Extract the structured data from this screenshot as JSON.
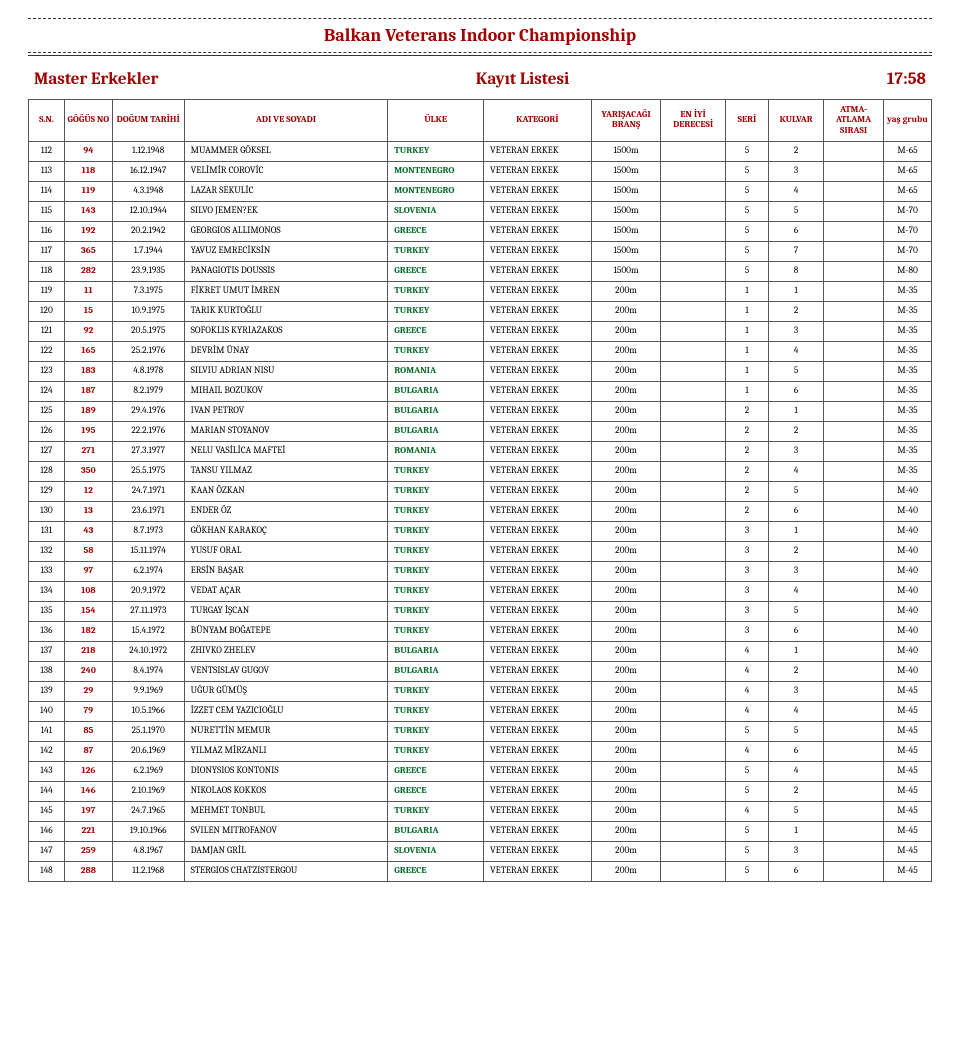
{
  "page": {
    "title": "Balkan Veterans Indoor Championship",
    "subtitle_left": "Master Erkekler",
    "subtitle_center": "Kayıt Listesi",
    "subtitle_right": "17:58"
  },
  "headers": {
    "sn": "S.N.",
    "gogus": "GÖĞÜS NO",
    "dogum": "DOĞUM TARİHİ",
    "ad": "ADI VE SOYADI",
    "ulke": "ÜLKE",
    "kategori": "KATEGORİ",
    "brans": "YARIŞACAĞI BRANŞ",
    "eniyi": "EN İYİ DERECESİ",
    "seri": "SERİ",
    "kulvar": "KULVAR",
    "atma": "ATMA-ATLAMA SIRASI",
    "yas": "yaş grubu"
  },
  "rows": [
    {
      "sn": "112",
      "gogus": "94",
      "dogum": "1.12.1948",
      "ad": "MUAMMER GÖKSEL",
      "ulke": "TURKEY",
      "kat": "VETERAN ERKEK",
      "brans": "1500m",
      "eniyi": "",
      "seri": "5",
      "kulv": "2",
      "atma": "",
      "yas": "M-65"
    },
    {
      "sn": "113",
      "gogus": "118",
      "dogum": "16.12.1947",
      "ad": "VELİMİR COROVİC",
      "ulke": "MONTENEGRO",
      "kat": "VETERAN ERKEK",
      "brans": "1500m",
      "eniyi": "",
      "seri": "5",
      "kulv": "3",
      "atma": "",
      "yas": "M-65"
    },
    {
      "sn": "114",
      "gogus": "119",
      "dogum": "4.3.1948",
      "ad": "LAZAR SEKULİC",
      "ulke": "MONTENEGRO",
      "kat": "VETERAN ERKEK",
      "brans": "1500m",
      "eniyi": "",
      "seri": "5",
      "kulv": "4",
      "atma": "",
      "yas": "M-65"
    },
    {
      "sn": "115",
      "gogus": "143",
      "dogum": "12.10.1944",
      "ad": "SILVO JEMEN?EK",
      "ulke": "SLOVENIA",
      "kat": "VETERAN ERKEK",
      "brans": "1500m",
      "eniyi": "",
      "seri": "5",
      "kulv": "5",
      "atma": "",
      "yas": "M-70"
    },
    {
      "sn": "116",
      "gogus": "192",
      "dogum": "20.2.1942",
      "ad": "GEORGIOS ALLIMONOS",
      "ulke": "GREECE",
      "kat": "VETERAN ERKEK",
      "brans": "1500m",
      "eniyi": "",
      "seri": "5",
      "kulv": "6",
      "atma": "",
      "yas": "M-70"
    },
    {
      "sn": "117",
      "gogus": "365",
      "dogum": "1.7.1944",
      "ad": "YAVUZ EMRECİKSİN",
      "ulke": "TURKEY",
      "kat": "VETERAN ERKEK",
      "brans": "1500m",
      "eniyi": "",
      "seri": "5",
      "kulv": "7",
      "atma": "",
      "yas": "M-70"
    },
    {
      "sn": "118",
      "gogus": "282",
      "dogum": "23.9.1935",
      "ad": "PANAGIOTIS DOUSSIS",
      "ulke": "GREECE",
      "kat": "VETERAN ERKEK",
      "brans": "1500m",
      "eniyi": "",
      "seri": "5",
      "kulv": "8",
      "atma": "",
      "yas": "M-80"
    },
    {
      "sn": "119",
      "gogus": "11",
      "dogum": "7.3.1975",
      "ad": "FİKRET UMUT İMREN",
      "ulke": "TURKEY",
      "kat": "VETERAN ERKEK",
      "brans": "200m",
      "eniyi": "",
      "seri": "1",
      "kulv": "1",
      "atma": "",
      "yas": "M-35"
    },
    {
      "sn": "120",
      "gogus": "15",
      "dogum": "10.9.1975",
      "ad": "TARIK  KURTOĞLU",
      "ulke": "TURKEY",
      "kat": "VETERAN ERKEK",
      "brans": "200m",
      "eniyi": "",
      "seri": "1",
      "kulv": "2",
      "atma": "",
      "yas": "M-35"
    },
    {
      "sn": "121",
      "gogus": "92",
      "dogum": "20.5.1975",
      "ad": "SOFOKLIS KYRIAZAKOS",
      "ulke": "GREECE",
      "kat": "VETERAN ERKEK",
      "brans": "200m",
      "eniyi": "",
      "seri": "1",
      "kulv": "3",
      "atma": "",
      "yas": "M-35"
    },
    {
      "sn": "122",
      "gogus": "165",
      "dogum": "25.2.1976",
      "ad": "DEVRİM ÜNAY",
      "ulke": "TURKEY",
      "kat": "VETERAN ERKEK",
      "brans": "200m",
      "eniyi": "",
      "seri": "1",
      "kulv": "4",
      "atma": "",
      "yas": "M-35"
    },
    {
      "sn": "123",
      "gogus": "183",
      "dogum": "4.8.1978",
      "ad": "SILVIU ADRIAN NISU",
      "ulke": "ROMANIA",
      "kat": "VETERAN ERKEK",
      "brans": "200m",
      "eniyi": "",
      "seri": "1",
      "kulv": "5",
      "atma": "",
      "yas": "M-35"
    },
    {
      "sn": "124",
      "gogus": "187",
      "dogum": "8.2.1979",
      "ad": "MIHAIL BOZUKOV",
      "ulke": "BULGARIA",
      "kat": "VETERAN ERKEK",
      "brans": "200m",
      "eniyi": "",
      "seri": "1",
      "kulv": "6",
      "atma": "",
      "yas": "M-35"
    },
    {
      "sn": "125",
      "gogus": "189",
      "dogum": "29.4.1976",
      "ad": "IVAN PETROV",
      "ulke": "BULGARIA",
      "kat": "VETERAN ERKEK",
      "brans": "200m",
      "eniyi": "",
      "seri": "2",
      "kulv": "1",
      "atma": "",
      "yas": "M-35"
    },
    {
      "sn": "126",
      "gogus": "195",
      "dogum": "22.2.1976",
      "ad": "MARIAN STOYANOV",
      "ulke": "BULGARIA",
      "kat": "VETERAN ERKEK",
      "brans": "200m",
      "eniyi": "",
      "seri": "2",
      "kulv": "2",
      "atma": "",
      "yas": "M-35"
    },
    {
      "sn": "127",
      "gogus": "271",
      "dogum": "27.3.1977",
      "ad": "NELU VASİLİCA MAFTEİ",
      "ulke": "ROMANIA",
      "kat": "VETERAN ERKEK",
      "brans": "200m",
      "eniyi": "",
      "seri": "2",
      "kulv": "3",
      "atma": "",
      "yas": "M-35"
    },
    {
      "sn": "128",
      "gogus": "350",
      "dogum": "25.5.1975",
      "ad": "TANSU YILMAZ",
      "ulke": "TURKEY",
      "kat": "VETERAN ERKEK",
      "brans": "200m",
      "eniyi": "",
      "seri": "2",
      "kulv": "4",
      "atma": "",
      "yas": "M-35"
    },
    {
      "sn": "129",
      "gogus": "12",
      "dogum": "24.7.1971",
      "ad": "KAAN ÖZKAN",
      "ulke": "TURKEY",
      "kat": "VETERAN ERKEK",
      "brans": "200m",
      "eniyi": "",
      "seri": "2",
      "kulv": "5",
      "atma": "",
      "yas": "M-40"
    },
    {
      "sn": "130",
      "gogus": "13",
      "dogum": "23.6.1971",
      "ad": "ENDER ÖZ",
      "ulke": "TURKEY",
      "kat": "VETERAN ERKEK",
      "brans": "200m",
      "eniyi": "",
      "seri": "2",
      "kulv": "6",
      "atma": "",
      "yas": "M-40"
    },
    {
      "sn": "131",
      "gogus": "43",
      "dogum": "8.7.1973",
      "ad": "GÖKHAN KARAKOÇ",
      "ulke": "TURKEY",
      "kat": "VETERAN ERKEK",
      "brans": "200m",
      "eniyi": "",
      "seri": "3",
      "kulv": "1",
      "atma": "",
      "yas": "M-40"
    },
    {
      "sn": "132",
      "gogus": "58",
      "dogum": "15.11.1974",
      "ad": "YUSUF ORAL",
      "ulke": "TURKEY",
      "kat": "VETERAN ERKEK",
      "brans": "200m",
      "eniyi": "",
      "seri": "3",
      "kulv": "2",
      "atma": "",
      "yas": "M-40"
    },
    {
      "sn": "133",
      "gogus": "97",
      "dogum": "6.2.1974",
      "ad": "ERSİN BAŞAR",
      "ulke": "TURKEY",
      "kat": "VETERAN ERKEK",
      "brans": "200m",
      "eniyi": "",
      "seri": "3",
      "kulv": "3",
      "atma": "",
      "yas": "M-40"
    },
    {
      "sn": "134",
      "gogus": "108",
      "dogum": "20.9.1972",
      "ad": "VEDAT AÇAR",
      "ulke": "TURKEY",
      "kat": "VETERAN ERKEK",
      "brans": "200m",
      "eniyi": "",
      "seri": "3",
      "kulv": "4",
      "atma": "",
      "yas": "M-40"
    },
    {
      "sn": "135",
      "gogus": "154",
      "dogum": "27.11.1973",
      "ad": "TURGAY İŞCAN",
      "ulke": "TURKEY",
      "kat": "VETERAN ERKEK",
      "brans": "200m",
      "eniyi": "",
      "seri": "3",
      "kulv": "5",
      "atma": "",
      "yas": "M-40"
    },
    {
      "sn": "136",
      "gogus": "182",
      "dogum": "15.4.1972",
      "ad": "BÜNYAM BOĞATEPE",
      "ulke": "TURKEY",
      "kat": "VETERAN ERKEK",
      "brans": "200m",
      "eniyi": "",
      "seri": "3",
      "kulv": "6",
      "atma": "",
      "yas": "M-40"
    },
    {
      "sn": "137",
      "gogus": "218",
      "dogum": "24.10.1972",
      "ad": "ZHIVKO ZHELEV",
      "ulke": "BULGARIA",
      "kat": "VETERAN ERKEK",
      "brans": "200m",
      "eniyi": "",
      "seri": "4",
      "kulv": "1",
      "atma": "",
      "yas": "M-40"
    },
    {
      "sn": "138",
      "gogus": "240",
      "dogum": "8.4.1974",
      "ad": "VENTSISLAV GUGOV",
      "ulke": "BULGARIA",
      "kat": "VETERAN ERKEK",
      "brans": "200m",
      "eniyi": "",
      "seri": "4",
      "kulv": "2",
      "atma": "",
      "yas": "M-40"
    },
    {
      "sn": "139",
      "gogus": "29",
      "dogum": "9.9.1969",
      "ad": "UĞUR GÜMÜŞ",
      "ulke": "TURKEY",
      "kat": "VETERAN ERKEK",
      "brans": "200m",
      "eniyi": "",
      "seri": "4",
      "kulv": "3",
      "atma": "",
      "yas": "M-45"
    },
    {
      "sn": "140",
      "gogus": "79",
      "dogum": "10.5.1966",
      "ad": "İZZET CEM YAZICIOĞLU",
      "ulke": "TURKEY",
      "kat": "VETERAN ERKEK",
      "brans": "200m",
      "eniyi": "",
      "seri": "4",
      "kulv": "4",
      "atma": "",
      "yas": "M-45"
    },
    {
      "sn": "141",
      "gogus": "85",
      "dogum": "25.1.1970",
      "ad": "NURETTİN MEMUR",
      "ulke": "TURKEY",
      "kat": "VETERAN ERKEK",
      "brans": "200m",
      "eniyi": "",
      "seri": "5",
      "kulv": "5",
      "atma": "",
      "yas": "M-45"
    },
    {
      "sn": "142",
      "gogus": "87",
      "dogum": "20.6.1969",
      "ad": "YILMAZ MİRZANLI",
      "ulke": "TURKEY",
      "kat": "VETERAN ERKEK",
      "brans": "200m",
      "eniyi": "",
      "seri": "4",
      "kulv": "6",
      "atma": "",
      "yas": "M-45"
    },
    {
      "sn": "143",
      "gogus": "126",
      "dogum": "6.2.1969",
      "ad": "DIONYSIOS KONTONIS",
      "ulke": "GREECE",
      "kat": "VETERAN ERKEK",
      "brans": "200m",
      "eniyi": "",
      "seri": "5",
      "kulv": "4",
      "atma": "",
      "yas": "M-45"
    },
    {
      "sn": "144",
      "gogus": "146",
      "dogum": "2.10.1969",
      "ad": "NIKOLAOS KOKKOS",
      "ulke": "GREECE",
      "kat": "VETERAN ERKEK",
      "brans": "200m",
      "eniyi": "",
      "seri": "5",
      "kulv": "2",
      "atma": "",
      "yas": "M-45"
    },
    {
      "sn": "145",
      "gogus": "197",
      "dogum": "24.7.1965",
      "ad": "MEHMET TONBUL",
      "ulke": "TURKEY",
      "kat": "VETERAN ERKEK",
      "brans": "200m",
      "eniyi": "",
      "seri": "4",
      "kulv": "5",
      "atma": "",
      "yas": "M-45"
    },
    {
      "sn": "146",
      "gogus": "221",
      "dogum": "19.10.1966",
      "ad": "SVILEN MITROFANOV",
      "ulke": "BULGARIA",
      "kat": "VETERAN ERKEK",
      "brans": "200m",
      "eniyi": "",
      "seri": "5",
      "kulv": "1",
      "atma": "",
      "yas": "M-45"
    },
    {
      "sn": "147",
      "gogus": "259",
      "dogum": "4.8.1967",
      "ad": "DAMJAN GRİL",
      "ulke": "SLOVENIA",
      "kat": "VETERAN ERKEK",
      "brans": "200m",
      "eniyi": "",
      "seri": "5",
      "kulv": "3",
      "atma": "",
      "yas": "M-45"
    },
    {
      "sn": "148",
      "gogus": "288",
      "dogum": "11.2.1968",
      "ad": "STERGIOS CHATZISTERGOU",
      "ulke": "GREECE",
      "kat": "VETERAN ERKEK",
      "brans": "200m",
      "eniyi": "",
      "seri": "5",
      "kulv": "6",
      "atma": "",
      "yas": "M-45"
    }
  ]
}
